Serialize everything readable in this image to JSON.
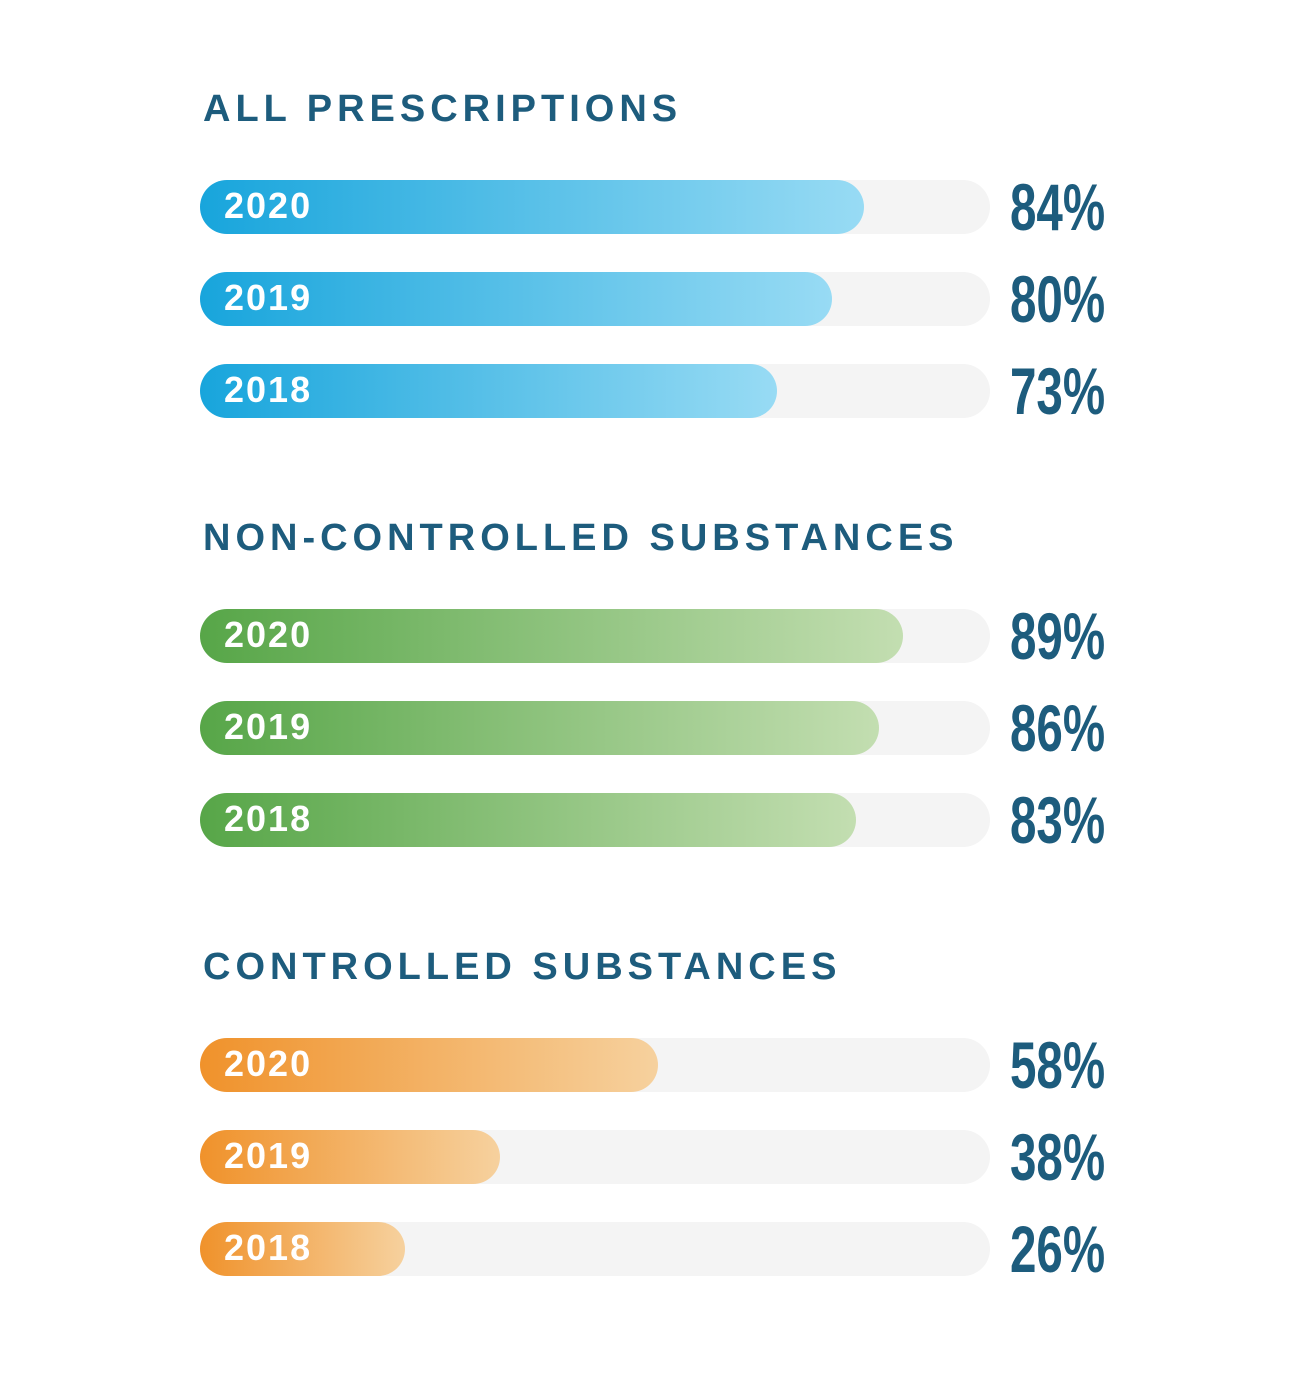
{
  "page": {
    "background_color": "#ffffff",
    "title_color": "#1d5c7d",
    "value_label_color": "#1d5c7d",
    "track_color": "#f4f4f4"
  },
  "chart_data": {
    "type": "bar",
    "orientation": "horizontal",
    "unit": "%",
    "value_range": [
      0,
      100
    ],
    "grid": false,
    "legend": false,
    "track_color": "#f4f4f4",
    "label_color": "#1d5c7d",
    "groups": [
      {
        "title": "ALL PRESCRIPTIONS",
        "bar_gradient": {
          "start": "#18a5dc",
          "end": "#98dbf4"
        },
        "categories": [
          "2020",
          "2019",
          "2018"
        ],
        "values": [
          84,
          80,
          73
        ],
        "bars": [
          {
            "label": "2020",
            "value": 84,
            "display": "84%"
          },
          {
            "label": "2019",
            "value": 80,
            "display": "80%"
          },
          {
            "label": "2018",
            "value": 73,
            "display": "73%"
          }
        ]
      },
      {
        "title": "NON-CONTROLLED SUBSTANCES",
        "bar_gradient": {
          "start": "#57a648",
          "end": "#c3deb1"
        },
        "categories": [
          "2020",
          "2019",
          "2018"
        ],
        "values": [
          89,
          86,
          83
        ],
        "bars": [
          {
            "label": "2020",
            "value": 89,
            "display": "89%"
          },
          {
            "label": "2019",
            "value": 86,
            "display": "86%"
          },
          {
            "label": "2018",
            "value": 83,
            "display": "83%"
          }
        ]
      },
      {
        "title": "CONTROLLED SUBSTANCES",
        "bar_gradient": {
          "start": "#f0922b",
          "end": "#f6d19e"
        },
        "categories": [
          "2020",
          "2019",
          "2018"
        ],
        "values": [
          58,
          38,
          26
        ],
        "bars": [
          {
            "label": "2020",
            "value": 58,
            "display": "58%"
          },
          {
            "label": "2019",
            "value": 38,
            "display": "38%"
          },
          {
            "label": "2018",
            "value": 26,
            "display": "26%"
          }
        ]
      }
    ]
  }
}
